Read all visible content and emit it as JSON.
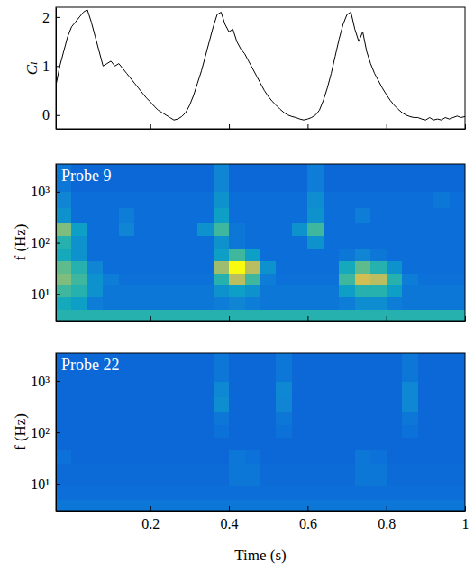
{
  "chart_data": [
    {
      "type": "line",
      "y_label": "Cₗ",
      "color": "#000000",
      "tick_labels": "y",
      "xlim": [
        -0.04,
        1
      ],
      "xticks": [
        0.2,
        0.4,
        0.6,
        0.8,
        1
      ],
      "ylim": [
        -0.28,
        2.2
      ],
      "yticks": [
        0,
        1,
        2
      ],
      "x": [
        -0.04,
        -0.03,
        -0.02,
        -0.01,
        0,
        0.01,
        0.02,
        0.03,
        0.04,
        0.05,
        0.06,
        0.07,
        0.08,
        0.09,
        0.1,
        0.11,
        0.12,
        0.13,
        0.14,
        0.15,
        0.16,
        0.17,
        0.18,
        0.19,
        0.2,
        0.21,
        0.22,
        0.23,
        0.24,
        0.25,
        0.26,
        0.27,
        0.28,
        0.29,
        0.3,
        0.31,
        0.32,
        0.33,
        0.34,
        0.35,
        0.36,
        0.37,
        0.38,
        0.39,
        0.4,
        0.41,
        0.42,
        0.43,
        0.44,
        0.45,
        0.46,
        0.47,
        0.48,
        0.49,
        0.5,
        0.51,
        0.52,
        0.53,
        0.54,
        0.55,
        0.56,
        0.57,
        0.58,
        0.59,
        0.6,
        0.61,
        0.62,
        0.63,
        0.64,
        0.65,
        0.66,
        0.67,
        0.68,
        0.69,
        0.7,
        0.71,
        0.72,
        0.73,
        0.74,
        0.75,
        0.76,
        0.77,
        0.78,
        0.79,
        0.8,
        0.81,
        0.82,
        0.83,
        0.84,
        0.85,
        0.86,
        0.87,
        0.88,
        0.89,
        0.9,
        0.91,
        0.92,
        0.93,
        0.94,
        0.95,
        0.96,
        0.97,
        0.98,
        0.99,
        1
      ],
      "values": [
        0.6,
        1.0,
        1.3,
        1.6,
        1.8,
        1.9,
        2.0,
        2.1,
        2.15,
        1.9,
        1.6,
        1.3,
        1.0,
        1.05,
        1.1,
        1.0,
        1.05,
        0.95,
        0.85,
        0.75,
        0.65,
        0.55,
        0.45,
        0.35,
        0.27,
        0.18,
        0.1,
        0.05,
        0.0,
        -0.05,
        -0.1,
        -0.08,
        -0.03,
        0.05,
        0.2,
        0.4,
        0.65,
        0.9,
        1.2,
        1.5,
        1.8,
        2.05,
        2.1,
        1.85,
        1.7,
        1.75,
        1.5,
        1.35,
        1.25,
        1.1,
        0.95,
        0.8,
        0.65,
        0.5,
        0.38,
        0.28,
        0.2,
        0.12,
        0.05,
        0.0,
        -0.03,
        -0.05,
        -0.08,
        -0.1,
        -0.08,
        -0.05,
        0.0,
        0.1,
        0.3,
        0.55,
        0.85,
        1.2,
        1.55,
        1.85,
        2.05,
        2.1,
        1.75,
        1.5,
        1.7,
        1.3,
        1.05,
        0.85,
        0.7,
        0.55,
        0.42,
        0.3,
        0.2,
        0.12,
        0.05,
        0.0,
        -0.03,
        -0.05,
        -0.05,
        -0.08,
        -0.1,
        -0.05,
        -0.1,
        -0.08,
        -0.1,
        -0.05,
        -0.08,
        -0.05,
        -0.02,
        -0.05,
        -0.03
      ]
    },
    {
      "type": "heatmap",
      "title": "Probe 9",
      "y_label": "f (Hz)",
      "log": "y",
      "tick_labels": "y",
      "xlim": [
        -0.04,
        1
      ],
      "xticks": [
        0.2,
        0.4,
        0.6,
        0.8,
        1
      ],
      "ylim": [
        3,
        3500
      ],
      "yticks": [
        {
          "value": 10,
          "label": "10¹"
        },
        {
          "value": 100,
          "label": "10²"
        },
        {
          "value": 1000,
          "label": "10³"
        }
      ],
      "zlim": [
        0,
        1
      ],
      "time_edges": [
        -0.04,
        0,
        0.04,
        0.08,
        0.12,
        0.16,
        0.2,
        0.24,
        0.28,
        0.32,
        0.36,
        0.4,
        0.44,
        0.48,
        0.52,
        0.56,
        0.6,
        0.64,
        0.68,
        0.72,
        0.76,
        0.8,
        0.84,
        0.88,
        0.92,
        0.96,
        1
      ],
      "freq_edges": [
        3,
        5,
        9,
        15,
        25,
        45,
        80,
        140,
        250,
        500,
        1000,
        3500
      ],
      "cells": [
        [
          0.45,
          0.45,
          0.45,
          0.45,
          0.45,
          0.45,
          0.45,
          0.45,
          0.45,
          0.45,
          0.45,
          0.45,
          0.45,
          0.45,
          0.45,
          0.45,
          0.45,
          0.45,
          0.45,
          0.45,
          0.45,
          0.45,
          0.45,
          0.45,
          0.45,
          0.45
        ],
        [
          0.4,
          0.35,
          0.22,
          0.2,
          0.2,
          0.2,
          0.2,
          0.2,
          0.2,
          0.2,
          0.22,
          0.25,
          0.22,
          0.2,
          0.2,
          0.2,
          0.2,
          0.2,
          0.22,
          0.28,
          0.28,
          0.22,
          0.2,
          0.2,
          0.2,
          0.2
        ],
        [
          0.5,
          0.45,
          0.3,
          0.2,
          0.2,
          0.2,
          0.2,
          0.2,
          0.2,
          0.2,
          0.3,
          0.35,
          0.3,
          0.2,
          0.2,
          0.2,
          0.2,
          0.2,
          0.35,
          0.45,
          0.45,
          0.35,
          0.2,
          0.2,
          0.2,
          0.2
        ],
        [
          0.6,
          0.5,
          0.3,
          0.22,
          0.18,
          0.18,
          0.18,
          0.18,
          0.18,
          0.18,
          0.45,
          0.7,
          0.5,
          0.22,
          0.18,
          0.18,
          0.18,
          0.18,
          0.5,
          0.75,
          0.7,
          0.45,
          0.22,
          0.18,
          0.18,
          0.18
        ],
        [
          0.55,
          0.45,
          0.25,
          0.17,
          0.17,
          0.17,
          0.17,
          0.17,
          0.17,
          0.17,
          0.65,
          1.0,
          0.7,
          0.3,
          0.17,
          0.17,
          0.17,
          0.17,
          0.4,
          0.55,
          0.45,
          0.3,
          0.17,
          0.17,
          0.17,
          0.17
        ],
        [
          0.4,
          0.3,
          0.17,
          0.17,
          0.17,
          0.17,
          0.17,
          0.17,
          0.17,
          0.17,
          0.35,
          0.5,
          0.35,
          0.17,
          0.17,
          0.17,
          0.17,
          0.17,
          0.2,
          0.25,
          0.2,
          0.17,
          0.17,
          0.17,
          0.17,
          0.17
        ],
        [
          0.45,
          0.3,
          0.17,
          0.17,
          0.17,
          0.17,
          0.17,
          0.17,
          0.17,
          0.17,
          0.3,
          0.2,
          0.17,
          0.17,
          0.17,
          0.17,
          0.3,
          0.17,
          0.17,
          0.17,
          0.17,
          0.17,
          0.17,
          0.17,
          0.17,
          0.17
        ],
        [
          0.6,
          0.35,
          0.17,
          0.17,
          0.25,
          0.17,
          0.17,
          0.17,
          0.17,
          0.3,
          0.5,
          0.2,
          0.17,
          0.17,
          0.17,
          0.3,
          0.5,
          0.17,
          0.17,
          0.17,
          0.17,
          0.17,
          0.17,
          0.17,
          0.17,
          0.17
        ],
        [
          0.3,
          0.17,
          0.17,
          0.17,
          0.22,
          0.17,
          0.17,
          0.17,
          0.17,
          0.17,
          0.35,
          0.17,
          0.17,
          0.17,
          0.17,
          0.17,
          0.3,
          0.17,
          0.17,
          0.22,
          0.17,
          0.17,
          0.17,
          0.17,
          0.17,
          0.17
        ],
        [
          0.25,
          0.17,
          0.17,
          0.17,
          0.17,
          0.17,
          0.17,
          0.17,
          0.17,
          0.17,
          0.3,
          0.17,
          0.17,
          0.17,
          0.17,
          0.17,
          0.28,
          0.17,
          0.17,
          0.17,
          0.17,
          0.17,
          0.17,
          0.17,
          0.2,
          0.17
        ],
        [
          0.2,
          0.15,
          0.15,
          0.15,
          0.15,
          0.15,
          0.15,
          0.15,
          0.15,
          0.15,
          0.25,
          0.15,
          0.15,
          0.15,
          0.15,
          0.15,
          0.22,
          0.15,
          0.15,
          0.15,
          0.15,
          0.15,
          0.15,
          0.15,
          0.15,
          0.15
        ]
      ]
    },
    {
      "type": "heatmap",
      "title": "Probe 22",
      "y_label": "f (Hz)",
      "x_label": "Time (s)",
      "log": "y",
      "xlim": [
        -0.04,
        1
      ],
      "xticks": [
        0.2,
        0.4,
        0.6,
        0.8,
        1
      ],
      "ylim": [
        3,
        3500
      ],
      "yticks": [
        {
          "value": 10,
          "label": "10¹"
        },
        {
          "value": 100,
          "label": "10²"
        },
        {
          "value": 1000,
          "label": "10³"
        }
      ],
      "zlim": [
        0,
        1
      ],
      "time_edges": [
        -0.04,
        0,
        0.04,
        0.08,
        0.12,
        0.16,
        0.2,
        0.24,
        0.28,
        0.32,
        0.36,
        0.4,
        0.44,
        0.48,
        0.52,
        0.56,
        0.6,
        0.64,
        0.68,
        0.72,
        0.76,
        0.8,
        0.84,
        0.88,
        0.92,
        0.96,
        1
      ],
      "freq_edges": [
        3,
        5,
        9,
        15,
        25,
        45,
        80,
        140,
        250,
        500,
        1000,
        3500
      ],
      "cells": [
        [
          0.2,
          0.2,
          0.2,
          0.2,
          0.2,
          0.2,
          0.2,
          0.2,
          0.2,
          0.2,
          0.2,
          0.2,
          0.2,
          0.2,
          0.2,
          0.2,
          0.2,
          0.2,
          0.2,
          0.2,
          0.2,
          0.2,
          0.2,
          0.2,
          0.2,
          0.2
        ],
        [
          0.17,
          0.17,
          0.17,
          0.17,
          0.17,
          0.17,
          0.17,
          0.17,
          0.17,
          0.17,
          0.17,
          0.17,
          0.17,
          0.17,
          0.17,
          0.17,
          0.17,
          0.17,
          0.17,
          0.17,
          0.17,
          0.17,
          0.17,
          0.17,
          0.17,
          0.17
        ],
        [
          0.16,
          0.16,
          0.16,
          0.16,
          0.16,
          0.16,
          0.16,
          0.16,
          0.16,
          0.16,
          0.16,
          0.2,
          0.2,
          0.16,
          0.16,
          0.16,
          0.16,
          0.16,
          0.16,
          0.2,
          0.2,
          0.16,
          0.16,
          0.16,
          0.16,
          0.16
        ],
        [
          0.16,
          0.16,
          0.16,
          0.16,
          0.16,
          0.16,
          0.16,
          0.16,
          0.16,
          0.16,
          0.16,
          0.2,
          0.2,
          0.16,
          0.16,
          0.16,
          0.16,
          0.16,
          0.16,
          0.2,
          0.2,
          0.16,
          0.16,
          0.16,
          0.16,
          0.16
        ],
        [
          0.18,
          0.15,
          0.15,
          0.15,
          0.15,
          0.15,
          0.15,
          0.15,
          0.15,
          0.15,
          0.15,
          0.2,
          0.18,
          0.15,
          0.15,
          0.15,
          0.15,
          0.15,
          0.15,
          0.2,
          0.18,
          0.15,
          0.15,
          0.15,
          0.15,
          0.15
        ],
        [
          0.15,
          0.15,
          0.15,
          0.15,
          0.15,
          0.15,
          0.15,
          0.15,
          0.15,
          0.15,
          0.15,
          0.15,
          0.15,
          0.15,
          0.15,
          0.15,
          0.15,
          0.15,
          0.15,
          0.15,
          0.15,
          0.15,
          0.15,
          0.15,
          0.15,
          0.15
        ],
        [
          0.15,
          0.15,
          0.15,
          0.15,
          0.15,
          0.15,
          0.15,
          0.15,
          0.15,
          0.15,
          0.18,
          0.15,
          0.15,
          0.15,
          0.18,
          0.15,
          0.15,
          0.15,
          0.15,
          0.15,
          0.15,
          0.15,
          0.18,
          0.15,
          0.15,
          0.15
        ],
        [
          0.15,
          0.15,
          0.15,
          0.15,
          0.15,
          0.15,
          0.15,
          0.15,
          0.15,
          0.15,
          0.2,
          0.15,
          0.15,
          0.15,
          0.2,
          0.15,
          0.15,
          0.15,
          0.15,
          0.15,
          0.15,
          0.15,
          0.2,
          0.15,
          0.15,
          0.15
        ],
        [
          0.15,
          0.15,
          0.15,
          0.15,
          0.15,
          0.15,
          0.15,
          0.15,
          0.15,
          0.15,
          0.28,
          0.15,
          0.15,
          0.15,
          0.25,
          0.15,
          0.15,
          0.15,
          0.15,
          0.15,
          0.15,
          0.15,
          0.26,
          0.15,
          0.15,
          0.15
        ],
        [
          0.15,
          0.15,
          0.15,
          0.15,
          0.15,
          0.15,
          0.15,
          0.15,
          0.15,
          0.15,
          0.26,
          0.15,
          0.15,
          0.15,
          0.26,
          0.15,
          0.15,
          0.15,
          0.15,
          0.15,
          0.15,
          0.15,
          0.26,
          0.15,
          0.15,
          0.15
        ],
        [
          0.15,
          0.15,
          0.15,
          0.15,
          0.15,
          0.15,
          0.15,
          0.15,
          0.15,
          0.15,
          0.2,
          0.15,
          0.15,
          0.15,
          0.2,
          0.15,
          0.15,
          0.15,
          0.15,
          0.15,
          0.15,
          0.15,
          0.2,
          0.15,
          0.15,
          0.15
        ]
      ]
    }
  ]
}
